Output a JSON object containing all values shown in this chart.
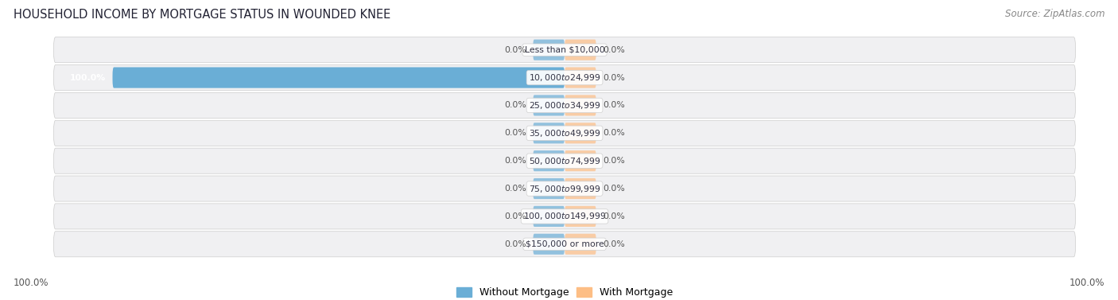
{
  "title": "HOUSEHOLD INCOME BY MORTGAGE STATUS IN WOUNDED KNEE",
  "source": "Source: ZipAtlas.com",
  "categories": [
    "Less than $10,000",
    "$10,000 to $24,999",
    "$25,000 to $34,999",
    "$35,000 to $49,999",
    "$50,000 to $74,999",
    "$75,000 to $99,999",
    "$100,000 to $149,999",
    "$150,000 or more"
  ],
  "without_mortgage": [
    0.0,
    100.0,
    0.0,
    0.0,
    0.0,
    0.0,
    0.0,
    0.0
  ],
  "with_mortgage": [
    0.0,
    0.0,
    0.0,
    0.0,
    0.0,
    0.0,
    0.0,
    0.0
  ],
  "color_without": "#6AAED6",
  "color_with": "#FDBE85",
  "row_bg_color": "#EDEDEE",
  "row_bg_color2": "#E8E8EA",
  "label_left_100": "100.0%",
  "label_right_100": "100.0%",
  "axis_min": -100,
  "axis_max": 100,
  "legend_without": "Without Mortgage",
  "legend_with": "With Mortgage",
  "stub_size": 7
}
